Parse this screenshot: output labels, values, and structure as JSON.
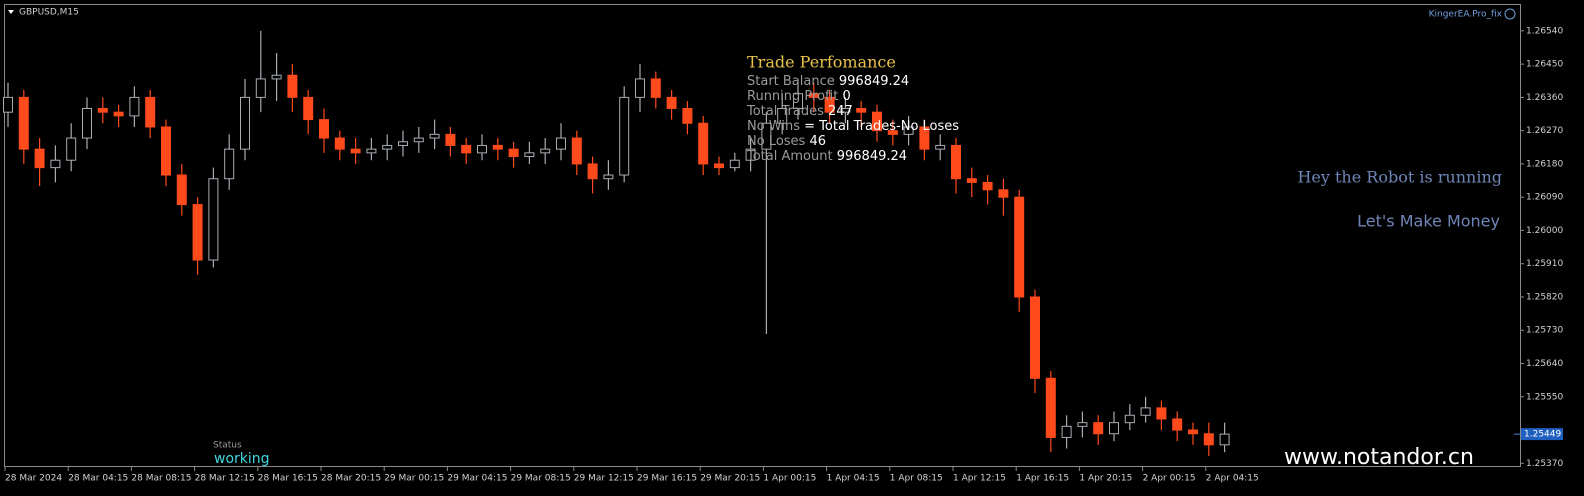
{
  "header": {
    "symbol": "GBPUSD,M15",
    "expert": "KingerEA.Pro_fix"
  },
  "panel": {
    "title": "Trade Perfomance",
    "rows": [
      {
        "label": "Start Balance",
        "value": 996849.24
      },
      {
        "label": "Running Profit",
        "value": 0
      },
      {
        "label": "Total Trades",
        "value": 247
      },
      {
        "label": "No Wins",
        "value": "= Total Trades-No Loses"
      },
      {
        "label": "No Loses",
        "value": 46
      },
      {
        "label": "Total Amount",
        "value": 996849.24
      }
    ]
  },
  "messages": [
    "Hey the Robot is running",
    "Let's Make Money"
  ],
  "status": {
    "label": "Status",
    "value": "working"
  },
  "watermark": "www.notandor.cn",
  "chart_data": {
    "type": "candlestick",
    "up_color": "#a8adb3",
    "down_color": "#ff4a1c",
    "grid": false,
    "ylim": [
      1.2536,
      1.2661
    ],
    "yticks": [
      {
        "value": 1.2654,
        "label": "1.26540"
      },
      {
        "value": 1.2645,
        "label": "1.26450"
      },
      {
        "value": 1.2636,
        "label": "1.26360"
      },
      {
        "value": 1.2627,
        "label": "1.26270"
      },
      {
        "value": 1.2618,
        "label": "1.26180"
      },
      {
        "value": 1.2609,
        "label": "1.26090"
      },
      {
        "value": 1.26,
        "label": "1.26000"
      },
      {
        "value": 1.2591,
        "label": "1.25910"
      },
      {
        "value": 1.2582,
        "label": "1.25820"
      },
      {
        "value": 1.2573,
        "label": "1.25730"
      },
      {
        "value": 1.2564,
        "label": "1.25640"
      },
      {
        "value": 1.2555,
        "label": "1.25550"
      },
      {
        "value": 1.2537,
        "label": "1.25370"
      }
    ],
    "current_price": 1.25449,
    "x_tick_labels": [
      "28 Mar 2024",
      "28 Mar 04:15",
      "28 Mar 08:15",
      "28 Mar 12:15",
      "28 Mar 16:15",
      "28 Mar 20:15",
      "29 Mar 00:15",
      "29 Mar 04:15",
      "29 Mar 08:15",
      "29 Mar 12:15",
      "29 Mar 16:15",
      "29 Mar 20:15",
      "1 Apr 00:15",
      "1 Apr 04:15",
      "1 Apr 08:15",
      "1 Apr 12:15",
      "1 Apr 16:15",
      "1 Apr 20:15",
      "2 Apr 00:15",
      "2 Apr 04:15"
    ],
    "open": [
      1.2632,
      1.2636,
      1.2622,
      1.2617,
      1.2619,
      1.2625,
      1.2633,
      1.2632,
      1.2631,
      1.2636,
      1.2628,
      1.2615,
      1.2607,
      1.2592,
      1.2614,
      1.2622,
      1.2636,
      1.2641,
      1.2642,
      1.2636,
      1.263,
      1.2625,
      1.2622,
      1.2621,
      1.2622,
      1.2623,
      1.2624,
      1.2625,
      1.2626,
      1.2623,
      1.2621,
      1.2623,
      1.2622,
      1.262,
      1.2621,
      1.2622,
      1.2625,
      1.2618,
      1.2614,
      1.2615,
      1.2636,
      1.2641,
      1.2636,
      1.2633,
      1.2629,
      1.2618,
      1.2617,
      1.2619,
      1.2622,
      1.2629,
      1.2633,
      1.2637,
      1.2636,
      1.2632,
      1.2633,
      1.2632,
      1.2627,
      1.2626,
      1.2628,
      1.2622,
      1.2623,
      1.2614,
      1.2613,
      1.2611,
      1.2609,
      1.2582,
      1.256,
      1.2544,
      1.2547,
      1.2548,
      1.2545,
      1.2548,
      1.255,
      1.2552,
      1.2549,
      1.2546,
      1.2545,
      1.2542
    ],
    "high": [
      1.264,
      1.2638,
      1.2625,
      1.2623,
      1.2629,
      1.2636,
      1.2636,
      1.2634,
      1.2639,
      1.2638,
      1.263,
      1.2618,
      1.2609,
      1.2617,
      1.2626,
      1.2641,
      1.2654,
      1.2648,
      1.2645,
      1.2638,
      1.2633,
      1.2627,
      1.2625,
      1.2625,
      1.2626,
      1.2627,
      1.2628,
      1.263,
      1.2628,
      1.2625,
      1.2626,
      1.2625,
      1.2624,
      1.2624,
      1.2625,
      1.2629,
      1.2627,
      1.262,
      1.2619,
      1.2639,
      1.2645,
      1.2643,
      1.2638,
      1.2635,
      1.2631,
      1.262,
      1.2621,
      1.2625,
      1.2632,
      1.2637,
      1.2641,
      1.264,
      1.2638,
      1.2636,
      1.2635,
      1.2634,
      1.263,
      1.2631,
      1.263,
      1.2626,
      1.2625,
      1.2617,
      1.2615,
      1.2614,
      1.2611,
      1.2584,
      1.2562,
      1.255,
      1.2551,
      1.255,
      1.2551,
      1.2553,
      1.2555,
      1.2554,
      1.2551,
      1.2548,
      1.2548,
      1.2548
    ],
    "low": [
      1.2628,
      1.2618,
      1.2612,
      1.2613,
      1.2616,
      1.2622,
      1.2629,
      1.2628,
      1.2628,
      1.2625,
      1.2612,
      1.2604,
      1.2588,
      1.259,
      1.2611,
      1.2619,
      1.2632,
      1.2635,
      1.2632,
      1.2626,
      1.2621,
      1.2619,
      1.2618,
      1.2619,
      1.2619,
      1.262,
      1.2621,
      1.2622,
      1.262,
      1.2618,
      1.2619,
      1.2619,
      1.2617,
      1.2618,
      1.2618,
      1.2619,
      1.2615,
      1.261,
      1.2611,
      1.2613,
      1.2632,
      1.2633,
      1.263,
      1.2626,
      1.2615,
      1.2615,
      1.2616,
      1.2616,
      1.2572,
      1.2626,
      1.263,
      1.2632,
      1.2629,
      1.2629,
      1.2628,
      1.2624,
      1.2623,
      1.2623,
      1.2619,
      1.2619,
      1.261,
      1.2609,
      1.2607,
      1.2604,
      1.2578,
      1.2556,
      1.254,
      1.2541,
      1.2544,
      1.2542,
      1.2543,
      1.2546,
      1.2548,
      1.2546,
      1.2543,
      1.2542,
      1.2539,
      1.254
    ],
    "close": [
      1.2636,
      1.2622,
      1.2617,
      1.2619,
      1.2625,
      1.2633,
      1.2632,
      1.2631,
      1.2636,
      1.2628,
      1.2615,
      1.2607,
      1.2592,
      1.2614,
      1.2622,
      1.2636,
      1.2641,
      1.2642,
      1.2636,
      1.263,
      1.2625,
      1.2622,
      1.2621,
      1.2622,
      1.2623,
      1.2624,
      1.2625,
      1.2626,
      1.2623,
      1.2621,
      1.2623,
      1.2622,
      1.262,
      1.2621,
      1.2622,
      1.2625,
      1.2618,
      1.2614,
      1.2615,
      1.2636,
      1.2641,
      1.2636,
      1.2633,
      1.2629,
      1.2618,
      1.2617,
      1.2619,
      1.2622,
      1.2629,
      1.2633,
      1.2637,
      1.2636,
      1.2632,
      1.2633,
      1.2632,
      1.2627,
      1.2626,
      1.2628,
      1.2622,
      1.2623,
      1.2614,
      1.2613,
      1.2611,
      1.2609,
      1.2582,
      1.256,
      1.2544,
      1.2547,
      1.2548,
      1.2545,
      1.2548,
      1.255,
      1.2552,
      1.2549,
      1.2546,
      1.2545,
      1.2542,
      1.25449
    ]
  }
}
